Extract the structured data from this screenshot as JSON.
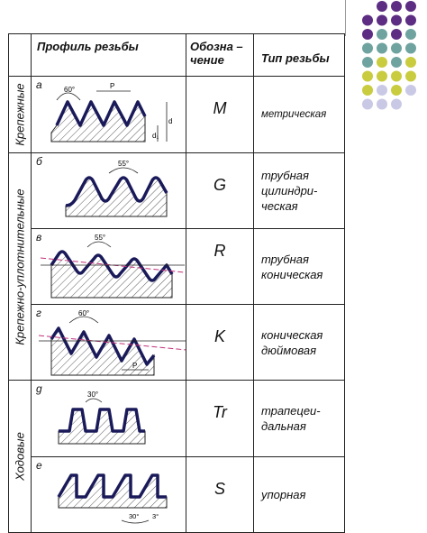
{
  "header": {
    "profile": "Профиль резьбы",
    "designation": "Обозна – чение",
    "type": "Тип резьбы"
  },
  "groups": {
    "fastening": "Крепежные",
    "sealing": "Крепежно-уплотнительные",
    "running": "Ходовые"
  },
  "rows": [
    {
      "letter": "а",
      "desig": "M",
      "type": "метрическая",
      "angle": "60°",
      "pitch": "P",
      "d": "d",
      "d1": "d₁"
    },
    {
      "letter": "б",
      "desig": "G",
      "type": "трубная цилиндри- ческая",
      "angle": "55°"
    },
    {
      "letter": "в",
      "desig": "R",
      "type": "трубная коническая",
      "angle": "55°"
    },
    {
      "letter": "г",
      "desig": "K",
      "type": "коническая дюймовая",
      "angle": "60°",
      "pitch": "P"
    },
    {
      "letter": "g",
      "desig": "Tr",
      "type": "трапецеи- дальная",
      "angle": "30°"
    },
    {
      "letter": "е",
      "desig": "S",
      "type": "упорная",
      "angle": "30°",
      "angle2": "3°"
    }
  ],
  "dot_colors": {
    "purple": "#5c2d82",
    "teal": "#6fa3a0",
    "olive": "#c9cc3f",
    "lavender": "#c9c9e6"
  }
}
